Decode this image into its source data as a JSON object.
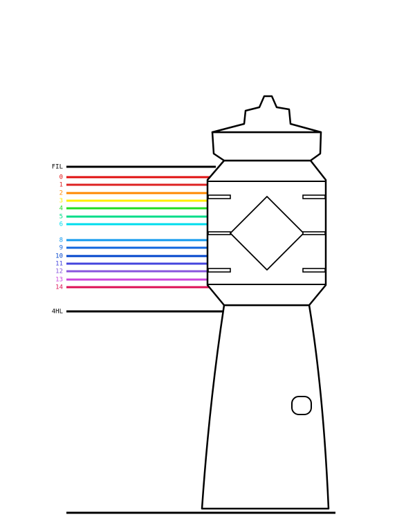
{
  "levels": [
    {
      "label": "FIL",
      "color": "#000000"
    },
    {
      "label": "0",
      "color": "#e01010"
    },
    {
      "label": "1",
      "color": "#dd2222"
    },
    {
      "label": "2",
      "color": "#ff8800"
    },
    {
      "label": "3",
      "color": "#ffee00"
    },
    {
      "label": "4",
      "color": "#22dd22"
    },
    {
      "label": "5",
      "color": "#00dd88"
    },
    {
      "label": "6",
      "color": "#00dded"
    },
    {
      "label": "8",
      "color": "#1199ee"
    },
    {
      "label": "9",
      "color": "#1166dd"
    },
    {
      "label": "10",
      "color": "#0044cc"
    },
    {
      "label": "11",
      "color": "#4444dd"
    },
    {
      "label": "12",
      "color": "#8855dd"
    },
    {
      "label": "13",
      "color": "#cc44dd"
    },
    {
      "label": "14",
      "color": "#dd1155"
    },
    {
      "label": "4HL",
      "color": "#000000"
    }
  ]
}
